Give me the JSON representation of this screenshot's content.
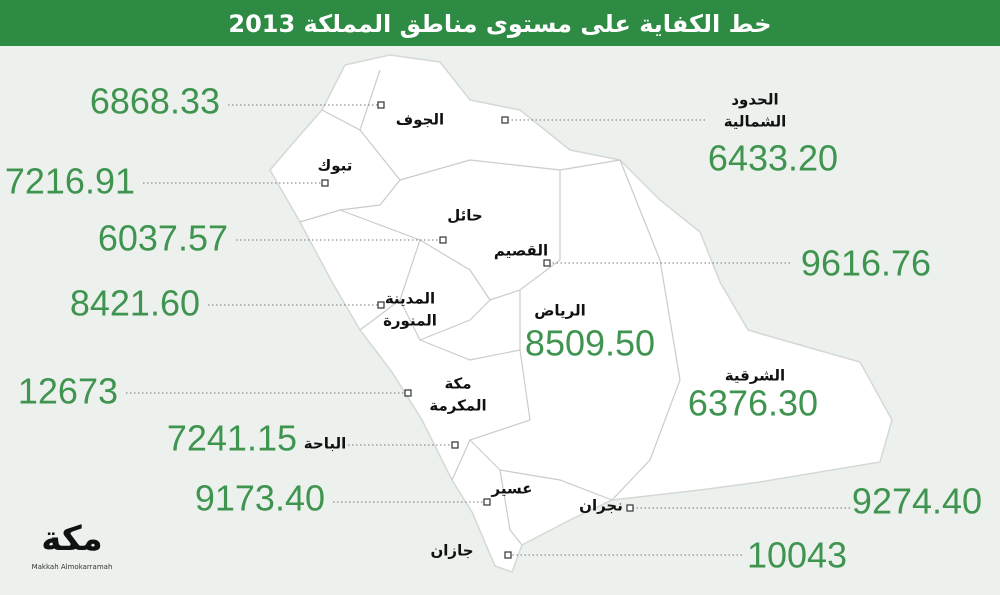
{
  "title": "خط الكفاية على مستوى مناطق المملكة 2013",
  "regions": [
    {
      "name_lines": [
        "الجوف"
      ],
      "value": "6868.33"
    },
    {
      "name_lines": [
        "الحدود",
        "الشمالية"
      ],
      "value": "6433.20"
    },
    {
      "name_lines": [
        "تبوك"
      ],
      "value": "7216.91"
    },
    {
      "name_lines": [
        "حائل"
      ],
      "value": "6037.57"
    },
    {
      "name_lines": [
        "القصيم"
      ],
      "value": "9616.76"
    },
    {
      "name_lines": [
        "المدينة",
        "المنورة"
      ],
      "value": "8421.60"
    },
    {
      "name_lines": [
        "الرياض"
      ],
      "value": "8509.50"
    },
    {
      "name_lines": [
        "مكة",
        "المكرمة"
      ],
      "value": "12673"
    },
    {
      "name_lines": [
        "الشرقية"
      ],
      "value": "6376.30"
    },
    {
      "name_lines": [
        "الباحة"
      ],
      "value": "7241.15"
    },
    {
      "name_lines": [
        "عسير"
      ],
      "value": "9173.40"
    },
    {
      "name_lines": [
        "نجران"
      ],
      "value": "9274.40"
    },
    {
      "name_lines": [
        "جازان"
      ],
      "value": "10043"
    }
  ],
  "logo": {
    "mark": "مكة",
    "caption": "Makkah Almokarramah"
  }
}
